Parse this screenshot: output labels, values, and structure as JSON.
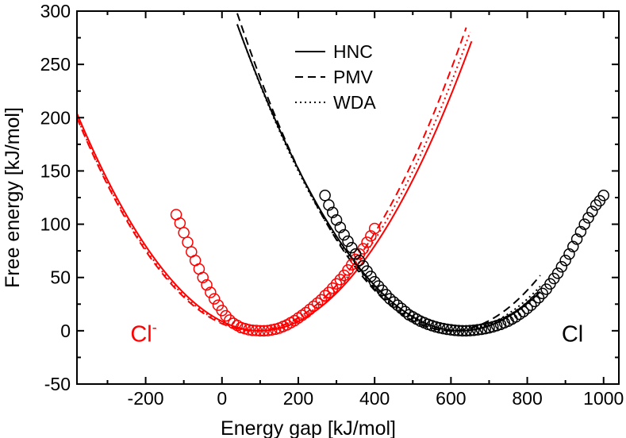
{
  "chart_data": {
    "type": "line",
    "title": "",
    "xlabel": "Energy gap [kJ/mol]",
    "ylabel": "Free energy [kJ/mol]",
    "xlim": [
      -380,
      1040
    ],
    "ylim": [
      -50,
      300
    ],
    "xticks": [
      -200,
      0,
      200,
      400,
      600,
      800,
      1000
    ],
    "yticks": [
      -50,
      0,
      50,
      100,
      150,
      200,
      250,
      300
    ],
    "grid": false,
    "legend": {
      "position": "top-center",
      "entries": [
        {
          "label": "HNC",
          "style": "solid"
        },
        {
          "label": "PMV",
          "style": "dashed"
        },
        {
          "label": "WDA",
          "style": "dotted"
        }
      ]
    },
    "annotations": [
      {
        "text": "Cl",
        "sup": "-",
        "color": "#ff0000",
        "x": -240,
        "y": -10
      },
      {
        "text": "Cl",
        "sup": "",
        "color": "#000000",
        "x": 890,
        "y": -10
      }
    ],
    "series": [
      {
        "name": "Cl- HNC",
        "color": "#ff0000",
        "style": "solid",
        "model": "parabola",
        "vertex_x": 100,
        "vertex_y": 0,
        "curvature": 0.000885,
        "x_range": [
          -380,
          655
        ]
      },
      {
        "name": "Cl- PMV",
        "color": "#ff0000",
        "style": "dashed",
        "model": "parabola",
        "vertex_x": 85,
        "vertex_y": 0,
        "curvature": 0.000924,
        "x_range": [
          -380,
          640
        ]
      },
      {
        "name": "Cl- WDA",
        "color": "#ff0000",
        "style": "dotted",
        "model": "parabola",
        "vertex_x": 92,
        "vertex_y": 0,
        "curvature": 0.0009,
        "x_range": [
          -380,
          650
        ]
      },
      {
        "name": "Cl HNC",
        "color": "#000000",
        "style": "solid",
        "model": "parabola",
        "vertex_x": 625,
        "vertex_y": 0,
        "curvature": 0.00084,
        "x_range": [
          40,
          835
        ]
      },
      {
        "name": "Cl PMV",
        "color": "#000000",
        "style": "dashed",
        "model": "parabola",
        "vertex_x": 600,
        "vertex_y": 0,
        "curvature": 0.00095,
        "x_range": [
          40,
          835
        ]
      },
      {
        "name": "Cl WDA",
        "color": "#000000",
        "style": "dotted",
        "model": "parabola",
        "vertex_x": 615,
        "vertex_y": 0,
        "curvature": 0.00087,
        "x_range": [
          40,
          835
        ]
      },
      {
        "name": "Cl- simulation",
        "color": "#ff0000",
        "style": "markers",
        "x": [
          -120,
          -110,
          -100,
          -90,
          -80,
          -70,
          -60,
          -50,
          -40,
          -30,
          -20,
          -10,
          0,
          10,
          20,
          30,
          40,
          50,
          60,
          70,
          80,
          90,
          100,
          110,
          120,
          130,
          140,
          150,
          160,
          170,
          180,
          190,
          200,
          210,
          220,
          230,
          240,
          250,
          260,
          270,
          280,
          290,
          300,
          310,
          320,
          330,
          340,
          350,
          360,
          370,
          380,
          390,
          400
        ],
        "y": [
          109,
          101,
          92,
          83,
          74,
          66,
          58,
          50,
          43,
          36,
          30,
          24,
          19,
          14,
          10,
          7,
          5,
          3,
          2,
          1,
          0.5,
          0.3,
          0,
          0,
          0.2,
          0.8,
          1.5,
          2.5,
          4,
          5.5,
          7.5,
          9.5,
          12,
          14.5,
          17,
          20,
          23,
          26,
          29,
          33,
          36,
          40,
          44,
          48,
          52,
          57,
          62,
          67,
          72,
          77,
          83,
          89,
          96
        ]
      },
      {
        "name": "Cl simulation",
        "color": "#000000",
        "style": "markers",
        "x": [
          270,
          280,
          290,
          300,
          310,
          320,
          330,
          340,
          350,
          360,
          370,
          380,
          390,
          400,
          410,
          420,
          430,
          440,
          450,
          460,
          470,
          480,
          490,
          500,
          510,
          520,
          530,
          540,
          550,
          560,
          570,
          580,
          590,
          600,
          610,
          620,
          630,
          640,
          650,
          660,
          670,
          680,
          690,
          700,
          710,
          720,
          730,
          740,
          750,
          760,
          770,
          780,
          790,
          800,
          810,
          820,
          830,
          840,
          850,
          860,
          870,
          880,
          890,
          900,
          910,
          920,
          930,
          940,
          950,
          960,
          970,
          980,
          990,
          1000
        ],
        "y": [
          127,
          118,
          111,
          104,
          97,
          90,
          84,
          78,
          72,
          66,
          61,
          56,
          51,
          46,
          42,
          38,
          34,
          30,
          27,
          24,
          21,
          18,
          15,
          13,
          11,
          9,
          7.5,
          6,
          4.8,
          3.7,
          2.8,
          2,
          1.4,
          0.9,
          0.5,
          0.2,
          0,
          0,
          0.2,
          0.5,
          0.9,
          1.4,
          2,
          2.8,
          3.7,
          4.8,
          6,
          7.5,
          9,
          11,
          13,
          15.5,
          18,
          21,
          24,
          27.5,
          31,
          35,
          39,
          44,
          49,
          54,
          60,
          66,
          72,
          79,
          86,
          93,
          100,
          106,
          112,
          118,
          122,
          127
        ]
      }
    ]
  }
}
